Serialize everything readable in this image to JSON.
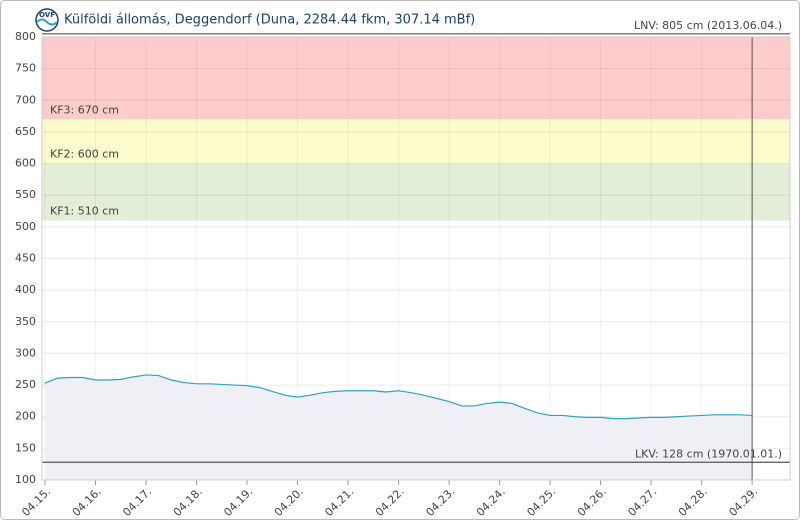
{
  "chart_data": {
    "type": "area",
    "title": "Külföldi állomás, Deggendorf (Duna, 2284.44 fkm, 307.14 mBf)",
    "x": [
      15,
      15.25,
      15.5,
      15.75,
      16,
      16.25,
      16.5,
      16.75,
      17,
      17.25,
      17.5,
      17.75,
      18,
      18.25,
      18.5,
      18.75,
      19,
      19.25,
      19.5,
      19.75,
      20,
      20.25,
      20.5,
      20.75,
      21,
      21.25,
      21.5,
      21.75,
      22,
      22.25,
      22.5,
      22.75,
      23,
      23.25,
      23.5,
      23.75,
      24,
      24.25,
      24.5,
      24.75,
      25,
      25.25,
      25.5,
      25.75,
      26,
      26.25,
      26.5,
      26.75,
      27,
      27.25,
      27.5,
      27.75,
      28,
      28.25,
      28.5,
      28.75,
      29
    ],
    "values": [
      253,
      261,
      262,
      262,
      258,
      258,
      259,
      263,
      266,
      265,
      258,
      254,
      252,
      252,
      251,
      250,
      249,
      246,
      240,
      234,
      231,
      234,
      238,
      240,
      241,
      241,
      241,
      239,
      241,
      238,
      234,
      229,
      224,
      217,
      217,
      221,
      223,
      221,
      213,
      206,
      202,
      202,
      200,
      199,
      199,
      197,
      197,
      198,
      199,
      199,
      200,
      201,
      202,
      203,
      203,
      203,
      202
    ],
    "color": "#2ba3c6",
    "fill": "#eef0f5",
    "xlim": [
      14.94,
      29.75
    ],
    "ylim": [
      100,
      800
    ],
    "xticks": [
      {
        "value": 15,
        "label": "04.15."
      },
      {
        "value": 16,
        "label": "04.16."
      },
      {
        "value": 17,
        "label": "04.17."
      },
      {
        "value": 18,
        "label": "04.18."
      },
      {
        "value": 19,
        "label": "04.19."
      },
      {
        "value": 20,
        "label": "04.20."
      },
      {
        "value": 21,
        "label": "04.21."
      },
      {
        "value": 22,
        "label": "04.22."
      },
      {
        "value": 23,
        "label": "04.23."
      },
      {
        "value": 24,
        "label": "04.24."
      },
      {
        "value": 25,
        "label": "04.25."
      },
      {
        "value": 26,
        "label": "04.26."
      },
      {
        "value": 27,
        "label": "04.27."
      },
      {
        "value": 28,
        "label": "04.28."
      },
      {
        "value": 29,
        "label": "04.29."
      }
    ],
    "yticks": [
      100,
      150,
      200,
      250,
      300,
      350,
      400,
      450,
      500,
      550,
      600,
      650,
      700,
      750,
      800
    ],
    "grid": true,
    "bands": [
      {
        "label": "KF1: 510 cm",
        "value": 510,
        "color": "#e2eed6"
      },
      {
        "label": "KF2: 600 cm",
        "value": 600,
        "color": "#fbfbcc"
      },
      {
        "label": "KF3: 670 cm",
        "value": 670,
        "color": "#ffcccc"
      }
    ],
    "lines": [
      {
        "label": "LNV: 805 cm (2013.06.04.)",
        "value": 805
      },
      {
        "label": "LKV: 128 cm (1970.01.01.)",
        "value": 128
      }
    ]
  }
}
